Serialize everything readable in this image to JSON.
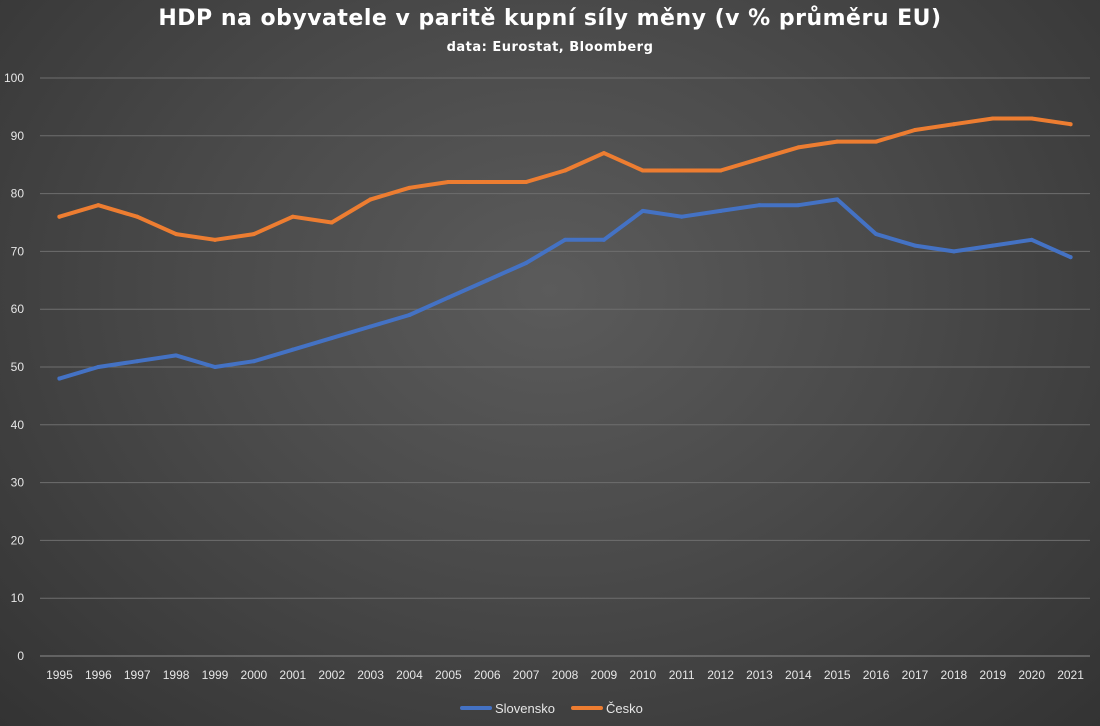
{
  "chart_data": {
    "type": "line",
    "title": "HDP na obyvatele v paritě kupní síly měny (v % průměru EU)",
    "subtitle": "data: Eurostat, Bloomberg",
    "xlabel": "",
    "ylabel": "",
    "ylim": [
      0,
      100
    ],
    "yticks": [
      0,
      10,
      20,
      30,
      40,
      50,
      60,
      70,
      80,
      90,
      100
    ],
    "grid": true,
    "legend_position": "bottom",
    "x": [
      "1995",
      "1996",
      "1997",
      "1998",
      "1999",
      "2000",
      "2001",
      "2002",
      "2003",
      "2004",
      "2005",
      "2006",
      "2007",
      "2008",
      "2009",
      "2010",
      "2011",
      "2012",
      "2013",
      "2014",
      "2015",
      "2016",
      "2017",
      "2018",
      "2019",
      "2020",
      "2021"
    ],
    "series": [
      {
        "name": "Slovensko",
        "color": "#4472C4",
        "values": [
          48,
          50,
          51,
          52,
          50,
          51,
          53,
          55,
          57,
          59,
          62,
          65,
          68,
          72,
          72,
          77,
          76,
          77,
          78,
          78,
          79,
          73,
          71,
          70,
          71,
          72,
          69
        ]
      },
      {
        "name": "Česko",
        "color": "#ED7D31",
        "values": [
          76,
          78,
          76,
          73,
          72,
          73,
          76,
          75,
          79,
          81,
          82,
          82,
          82,
          84,
          87,
          84,
          84,
          84,
          86,
          88,
          89,
          89,
          91,
          92,
          93,
          93,
          92
        ]
      }
    ]
  }
}
